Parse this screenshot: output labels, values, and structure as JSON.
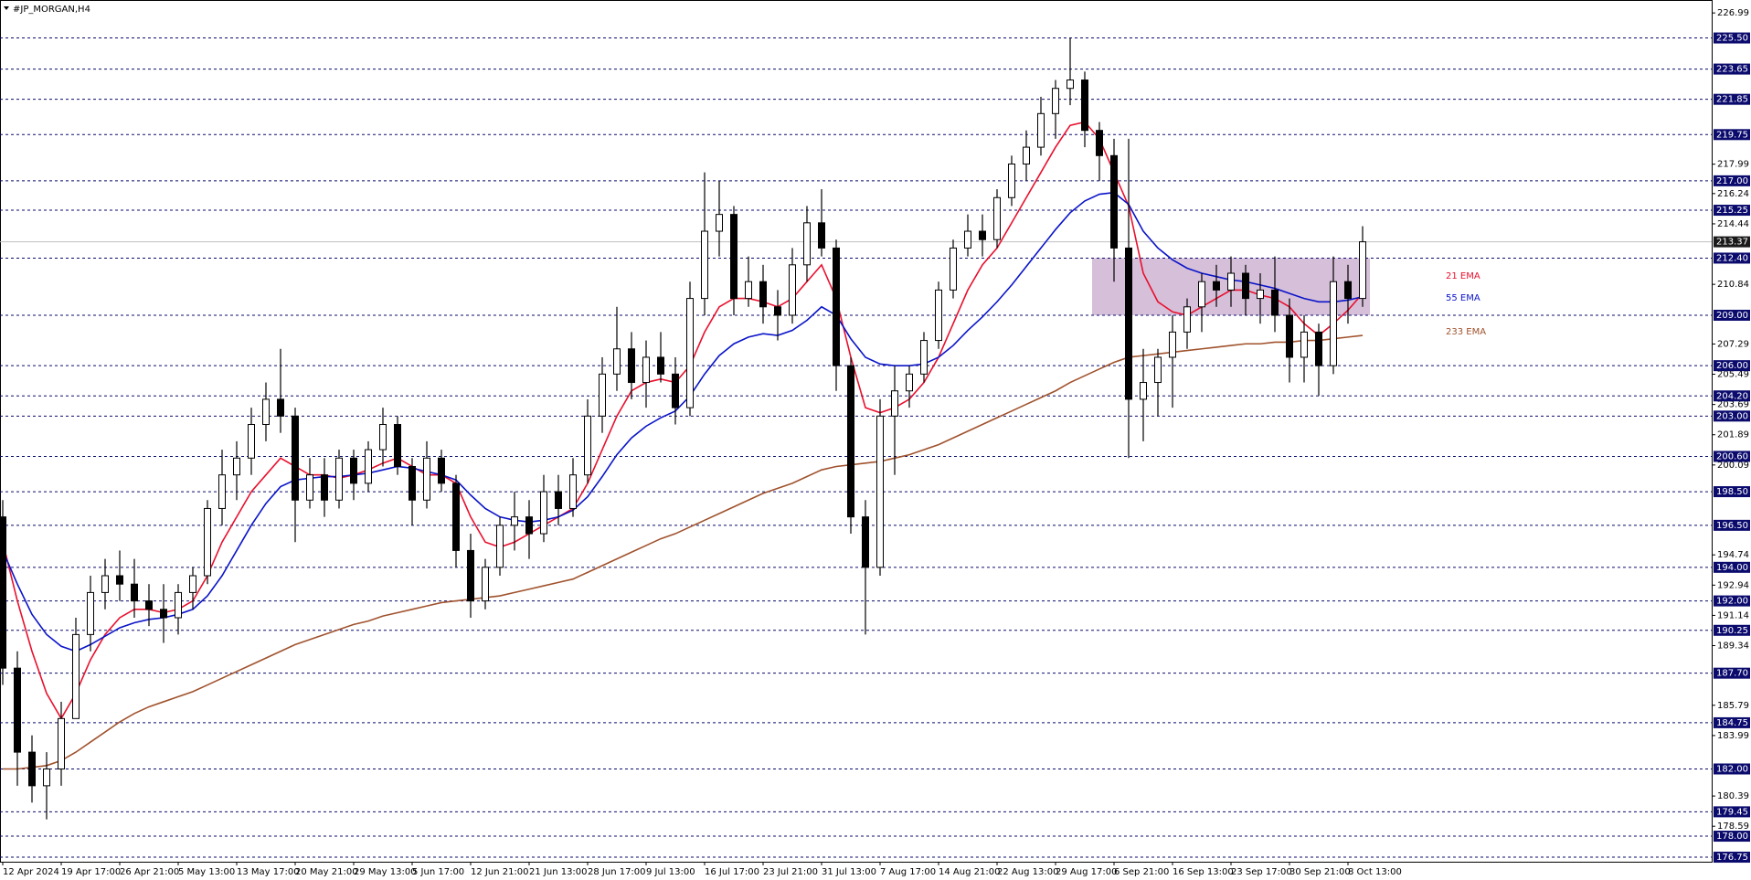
{
  "chart_data": {
    "type": "candlestick",
    "title": "#JP_MORGAN,H4",
    "categories": [
      "12 Apr 2024",
      null,
      null,
      null,
      "19 Apr 17:00",
      null,
      null,
      null,
      "26 Apr 21:00",
      null,
      null,
      null,
      "5 May 13:00",
      null,
      null,
      null,
      "13 May 17:00",
      null,
      null,
      null,
      "20 May 21:00",
      null,
      null,
      null,
      "29 May 13:00",
      null,
      null,
      null,
      "5 Jun 17:00",
      null,
      null,
      null,
      "12 Jun 21:00",
      null,
      null,
      null,
      "21 Jun 13:00",
      null,
      null,
      null,
      "28 Jun 17:00",
      null,
      null,
      null,
      "9 Jul 13:00",
      null,
      null,
      null,
      "16 Jul 17:00",
      null,
      null,
      null,
      "23 Jul 21:00",
      null,
      null,
      null,
      "31 Jul 13:00",
      null,
      null,
      null,
      "7 Aug 17:00",
      null,
      null,
      null,
      "14 Aug 21:00",
      null,
      null,
      null,
      "22 Aug 13:00",
      null,
      null,
      null,
      "29 Aug 17:00",
      null,
      null,
      null,
      "6 Sep 21:00",
      null,
      null,
      null,
      "16 Sep 13:00",
      null,
      null,
      null,
      "23 Sep 17:00",
      null,
      null,
      null,
      "30 Sep 21:00",
      null,
      null,
      null,
      "8 Oct 13:00",
      null
    ],
    "open": [
      197,
      188,
      183,
      181,
      182,
      185,
      190,
      192.5,
      193.5,
      193,
      192,
      191.5,
      191,
      192.5,
      193.5,
      197.5,
      199.5,
      200.5,
      202.5,
      204,
      203,
      198,
      199.5,
      198,
      200.5,
      199,
      201,
      202.5,
      200,
      198,
      200.5,
      199,
      195,
      192,
      194,
      196.5,
      197,
      196,
      198.5,
      197.5,
      199.5,
      203,
      205.5,
      207,
      205,
      206.5,
      205.5,
      203.5,
      210,
      214,
      215,
      210,
      211,
      209.5,
      209,
      212,
      214.5,
      213,
      206,
      197,
      194,
      203,
      204.5,
      205.5,
      207.5,
      210.5,
      213,
      214,
      213.5,
      216,
      218,
      219,
      221,
      222.5,
      223,
      220,
      218.5,
      213,
      204,
      205,
      206.5,
      208,
      209.5,
      211,
      210.5,
      211.5,
      210,
      210.5,
      209,
      206.5,
      208,
      206,
      211,
      210
    ],
    "high": [
      198,
      189,
      184,
      183,
      186,
      191,
      193.5,
      194.5,
      195,
      194.5,
      193,
      193,
      193,
      194,
      198,
      201,
      201.5,
      203.5,
      205,
      207,
      203.5,
      200.5,
      200.5,
      201,
      201,
      201.5,
      203.5,
      203,
      200.5,
      201.5,
      201,
      199.5,
      196,
      194.5,
      197,
      198.5,
      198,
      199.5,
      199.5,
      200.5,
      204,
      206.5,
      209.5,
      208,
      207.5,
      208,
      206.5,
      211,
      217.5,
      217,
      215.5,
      212.5,
      212,
      210.5,
      213,
      215.5,
      216.5,
      213.5,
      206.5,
      198,
      204,
      206,
      206,
      208,
      211,
      213.5,
      215,
      215,
      216.5,
      218.5,
      220,
      222,
      223,
      225.5,
      223.5,
      220.5,
      219.5,
      219.5,
      207,
      207,
      209,
      210,
      211.5,
      212,
      212.5,
      212,
      211.5,
      212.5,
      210,
      209,
      208.5,
      212.5,
      212,
      214.3
    ],
    "low": [
      187,
      181,
      180,
      179,
      181,
      185,
      189,
      191.5,
      192,
      191,
      190.5,
      189.5,
      190,
      191.5,
      193,
      196.5,
      198,
      199.5,
      201.5,
      202,
      195.5,
      197.5,
      197,
      197.5,
      198,
      198.5,
      200,
      199.5,
      196.5,
      197.5,
      198.5,
      194,
      191,
      191.5,
      193.5,
      195,
      194.5,
      195.5,
      196.5,
      197,
      199,
      202,
      204.5,
      204,
      203.5,
      205,
      202.5,
      203,
      209,
      212.5,
      209,
      209.5,
      208.5,
      207.5,
      208.5,
      211,
      212.5,
      204.5,
      196,
      190,
      193.5,
      199.5,
      203.5,
      205,
      207,
      210,
      212.5,
      212.5,
      213,
      215.5,
      217,
      218.5,
      219.5,
      221.5,
      219,
      217,
      211,
      200.5,
      201.5,
      203,
      203.5,
      207,
      208,
      209.5,
      209.5,
      209,
      208.5,
      208,
      205,
      205,
      204.2,
      205.5,
      208.5,
      209.5
    ],
    "close": [
      188,
      183,
      181,
      182,
      185,
      190,
      192.5,
      193.5,
      193,
      192,
      191.5,
      191,
      192.5,
      193.5,
      197.5,
      199.5,
      200.5,
      202.5,
      204,
      203,
      198,
      199.5,
      198,
      200.5,
      199,
      201,
      202.5,
      200,
      198,
      200.5,
      199,
      195,
      192,
      194,
      196.5,
      197,
      196,
      198.5,
      197.5,
      199.5,
      203,
      205.5,
      207,
      205,
      206.5,
      205.5,
      203.5,
      210,
      214,
      215,
      210,
      211,
      209.5,
      209,
      212,
      214.5,
      213,
      206,
      197,
      194,
      203,
      204.5,
      205.5,
      207.5,
      210.5,
      213,
      214,
      213.5,
      216,
      218,
      219,
      221,
      222.5,
      223,
      220,
      218.5,
      213,
      204,
      205,
      206.5,
      208,
      209.5,
      211,
      210.5,
      211.5,
      210,
      210.5,
      209,
      206.5,
      208,
      206,
      211,
      210,
      213.37
    ],
    "series": [
      {
        "name": "21 EMA",
        "color": "#e8102e",
        "values": [
          195.5,
          192,
          189,
          186.5,
          185,
          186.5,
          188.5,
          190,
          191,
          191.5,
          191.5,
          191.3,
          191.5,
          192,
          193.5,
          195.5,
          197,
          198.5,
          199.5,
          200.5,
          200,
          199.5,
          199.5,
          199.3,
          199.5,
          199.8,
          200.2,
          200.5,
          200,
          199.5,
          199.5,
          199,
          197,
          195.5,
          195.2,
          195.5,
          196,
          196.5,
          197,
          197.5,
          199,
          201,
          203,
          204.5,
          205,
          205.2,
          205,
          206,
          208,
          209.5,
          210,
          210,
          209.8,
          209.5,
          210,
          211,
          212,
          210,
          206.5,
          203.5,
          203.2,
          203.5,
          204,
          205,
          206.5,
          208.5,
          210.5,
          212,
          213,
          214.5,
          216,
          217.5,
          219,
          220.3,
          220.5,
          219.5,
          217.5,
          215.5,
          211.5,
          209.8,
          209.2,
          209,
          209.5,
          210,
          210.5,
          210.5,
          210.2,
          210,
          209.5,
          208.5,
          207.8,
          208.5,
          209.3,
          210.3
        ]
      },
      {
        "name": "55 EMA",
        "color": "#0a14c8",
        "values": [
          195,
          193,
          191.2,
          190,
          189.3,
          189,
          189.4,
          189.9,
          190.4,
          190.7,
          190.9,
          191,
          191.2,
          191.5,
          192.3,
          193.5,
          195,
          196.5,
          197.8,
          198.8,
          199.2,
          199.3,
          199.4,
          199.4,
          199.5,
          199.6,
          199.8,
          200,
          199.9,
          199.7,
          199.5,
          199.2,
          198.3,
          197.5,
          197,
          196.8,
          196.7,
          196.8,
          197,
          197.4,
          198.2,
          199.4,
          200.7,
          201.7,
          202.4,
          202.9,
          203.3,
          204.2,
          205.5,
          206.6,
          207.3,
          207.7,
          207.9,
          207.8,
          208.1,
          208.7,
          209.5,
          209,
          207.6,
          206.5,
          206.1,
          206,
          206,
          206.1,
          206.5,
          207.2,
          208.1,
          208.9,
          209.8,
          210.8,
          211.9,
          213,
          214.1,
          215.1,
          215.8,
          216.2,
          216.3,
          215.6,
          214,
          213,
          212.3,
          211.8,
          211.5,
          211.3,
          211.1,
          211,
          210.8,
          210.6,
          210.3,
          210,
          209.8,
          209.8,
          209.9,
          210.1
        ]
      },
      {
        "name": "233 EMA",
        "color": "#a0522d",
        "values": [
          182,
          182,
          182.1,
          182.2,
          182.5,
          183,
          183.6,
          184.2,
          184.8,
          185.3,
          185.7,
          186,
          186.3,
          186.6,
          187,
          187.4,
          187.8,
          188.2,
          188.6,
          189,
          189.4,
          189.7,
          190,
          190.3,
          190.6,
          190.8,
          191.1,
          191.3,
          191.5,
          191.7,
          191.9,
          192,
          192.1,
          192.2,
          192.3,
          192.5,
          192.7,
          192.9,
          193.1,
          193.3,
          193.7,
          194.1,
          194.5,
          194.9,
          195.3,
          195.7,
          196,
          196.4,
          196.8,
          197.2,
          197.6,
          198,
          198.4,
          198.7,
          199,
          199.4,
          199.8,
          200,
          200.1,
          200.2,
          200.3,
          200.5,
          200.7,
          201,
          201.3,
          201.7,
          202.1,
          202.5,
          202.9,
          203.3,
          203.7,
          204.1,
          204.5,
          205,
          205.4,
          205.8,
          206.2,
          206.5,
          206.6,
          206.7,
          206.8,
          206.9,
          207,
          207.1,
          207.2,
          207.3,
          207.3,
          207.4,
          207.4,
          207.5,
          207.5,
          207.6,
          207.7,
          207.8
        ]
      }
    ],
    "zone": {
      "start": 75,
      "end": 93,
      "low": 209,
      "high": 212.4,
      "color": "#d6bfd9"
    },
    "ylim": [
      176.48,
      227.76
    ],
    "yticks": [
      226.99,
      217.99,
      216.24,
      214.44,
      210.84,
      207.29,
      205.49,
      203.69,
      201.89,
      200.09,
      194.74,
      192.94,
      191.14,
      189.34,
      185.79,
      183.99,
      180.39,
      178.59
    ],
    "levels": [
      {
        "value": 225.5,
        "label": "225.50"
      },
      223.65,
      221.85,
      219.75,
      {
        "value": 217,
        "label": "217.00"
      },
      215.25,
      {
        "value": 212.4,
        "label": "212.40"
      },
      {
        "value": 209,
        "label": "209.00"
      },
      {
        "value": 206,
        "label": "206.00"
      },
      {
        "value": 204.2,
        "label": "204.20"
      },
      {
        "value": 203,
        "label": "203.00"
      },
      {
        "value": 200.6,
        "label": "200.60"
      },
      {
        "value": 198.5,
        "label": "198.50"
      },
      {
        "value": 196.5,
        "label": "196.50"
      },
      {
        "value": 194,
        "label": "194.00"
      },
      {
        "value": 192,
        "label": "192.00"
      },
      190.25,
      {
        "value": 187.7,
        "label": "187.70"
      },
      184.75,
      {
        "value": 182,
        "label": "182.00"
      },
      179.45,
      {
        "value": 178,
        "label": "178.00"
      },
      176.75
    ],
    "level_color": "#0b0b6e",
    "current_price": 213.37
  }
}
